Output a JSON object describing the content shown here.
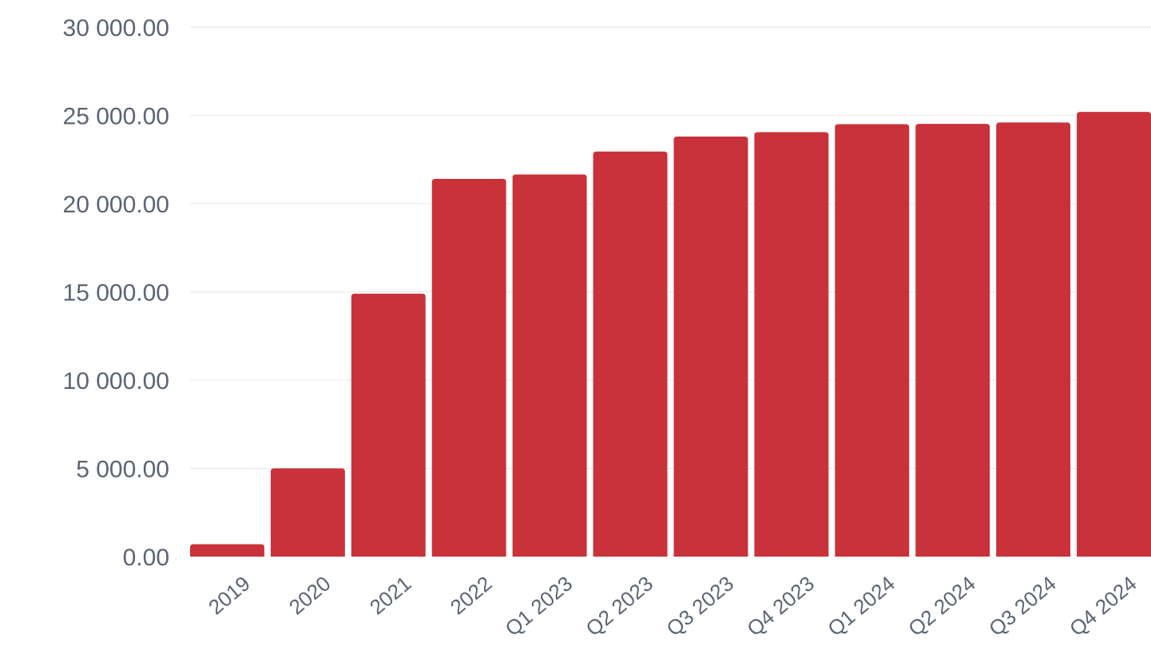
{
  "chart_data": {
    "type": "bar",
    "title": "",
    "xlabel": "",
    "ylabel": "",
    "categories": [
      "2019",
      "2020",
      "2021",
      "2022",
      "Q1 2023",
      "Q2 2023",
      "Q3 2023",
      "Q4 2023",
      "Q1 2024",
      "Q2 2024",
      "Q3 2024",
      "Q4 2024"
    ],
    "values": [
      700,
      5000,
      14900,
      21400,
      21650,
      22950,
      23800,
      24050,
      24500,
      24520,
      24600,
      25200
    ],
    "ylim": [
      0,
      30000
    ],
    "yticks": [
      0,
      5000,
      10000,
      15000,
      20000,
      25000,
      30000
    ],
    "ytick_labels": [
      "0.00",
      "5 000.00",
      "10 000.00",
      "15 000.00",
      "20 000.00",
      "25 000.00",
      "30 000.00"
    ],
    "grid": true,
    "legend": "none",
    "bar_color": "#c9323a"
  }
}
